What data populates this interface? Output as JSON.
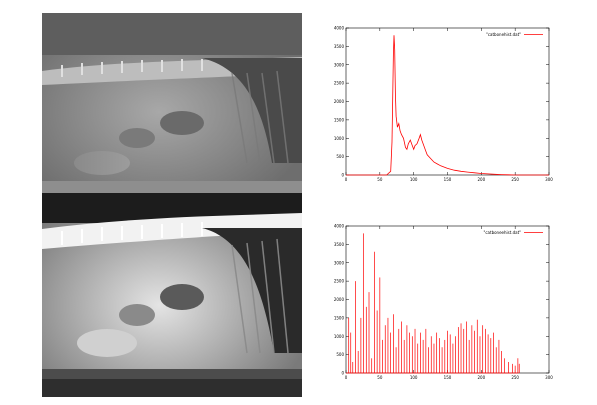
{
  "images": {
    "top": {
      "name": "xray-original"
    },
    "bottom": {
      "name": "xray-equalized"
    }
  },
  "chart_data": [
    {
      "type": "line",
      "title": "",
      "xlabel": "",
      "ylabel": "",
      "xlim": [
        0,
        300
      ],
      "ylim": [
        0,
        4000
      ],
      "x_ticks": [
        0,
        50,
        100,
        150,
        200,
        250,
        300
      ],
      "y_ticks": [
        0,
        500,
        1000,
        1500,
        2000,
        2500,
        3000,
        3500,
        4000
      ],
      "grid": false,
      "legend_position": "top-right",
      "series": [
        {
          "name": "\"catbonehist.dat\"",
          "color": "#ff0000",
          "x": [
            0,
            40,
            60,
            66,
            68,
            70,
            71,
            72,
            73,
            74,
            76,
            78,
            80,
            82,
            85,
            88,
            90,
            92,
            95,
            98,
            100,
            102,
            105,
            108,
            110,
            112,
            115,
            118,
            120,
            125,
            130,
            135,
            140,
            150,
            160,
            170,
            180,
            190,
            200,
            210,
            220,
            230,
            240,
            250,
            255,
            260,
            300
          ],
          "y": [
            0,
            0,
            0,
            100,
            900,
            3300,
            3800,
            3400,
            2200,
            1600,
            1300,
            1400,
            1200,
            1100,
            1000,
            750,
            700,
            850,
            950,
            800,
            700,
            800,
            850,
            1000,
            1100,
            950,
            800,
            650,
            550,
            450,
            350,
            300,
            250,
            180,
            130,
            100,
            80,
            60,
            40,
            30,
            20,
            10,
            5,
            0,
            0,
            0,
            0
          ]
        }
      ]
    },
    {
      "type": "bar",
      "title": "",
      "xlabel": "",
      "ylabel": "",
      "xlim": [
        0,
        300
      ],
      "ylim": [
        0,
        4000
      ],
      "x_ticks": [
        0,
        50,
        100,
        150,
        200,
        250,
        300
      ],
      "y_ticks": [
        0,
        500,
        1000,
        1500,
        2000,
        2500,
        3000,
        3500,
        4000
      ],
      "grid": false,
      "legend_position": "top-right",
      "series": [
        {
          "name": "\"catboneehist.dat\"",
          "color": "#ff0000",
          "x": [
            4,
            7,
            10,
            14,
            18,
            22,
            26,
            30,
            34,
            38,
            42,
            46,
            50,
            54,
            58,
            62,
            66,
            70,
            74,
            78,
            82,
            86,
            90,
            94,
            98,
            102,
            106,
            110,
            114,
            118,
            122,
            126,
            130,
            134,
            138,
            142,
            146,
            150,
            154,
            158,
            162,
            166,
            170,
            174,
            178,
            182,
            186,
            190,
            194,
            198,
            202,
            206,
            210,
            214,
            218,
            222,
            226,
            230,
            234,
            240,
            246,
            250,
            254,
            256
          ],
          "y": [
            1500,
            1100,
            300,
            2500,
            600,
            1500,
            3800,
            1800,
            2200,
            400,
            3300,
            1700,
            2600,
            900,
            1300,
            1500,
            1100,
            1600,
            700,
            1200,
            1400,
            900,
            1300,
            1100,
            1000,
            1200,
            800,
            1100,
            900,
            1200,
            700,
            1000,
            800,
            1100,
            950,
            700,
            900,
            1150,
            1050,
            800,
            1000,
            1250,
            1350,
            1200,
            1400,
            900,
            1300,
            1150,
            1450,
            1000,
            1300,
            1200,
            1050,
            950,
            1100,
            700,
            900,
            600,
            400,
            300,
            250,
            200,
            400,
            250
          ]
        }
      ]
    }
  ]
}
